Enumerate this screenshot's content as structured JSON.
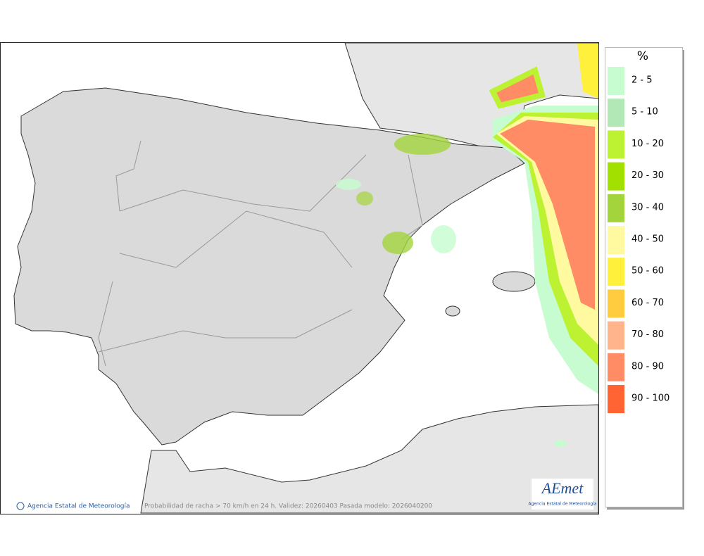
{
  "legend": {
    "title": "%",
    "items": [
      {
        "label": "2 - 5",
        "color": "#c6fcd0"
      },
      {
        "label": "5 - 10",
        "color": "#b2e8b6"
      },
      {
        "label": "10 - 20",
        "color": "#bcf232"
      },
      {
        "label": "20 - 30",
        "color": "#a2e000"
      },
      {
        "label": "30 - 40",
        "color": "#a4d43c"
      },
      {
        "label": "40 - 50",
        "color": "#fffaa0"
      },
      {
        "label": "50 - 60",
        "color": "#fff03c"
      },
      {
        "label": "60 - 70",
        "color": "#ffcc40"
      },
      {
        "label": "70 - 80",
        "color": "#ffb48c"
      },
      {
        "label": "80 - 90",
        "color": "#ff8c64"
      },
      {
        "label": "90 - 100",
        "color": "#ff6432"
      }
    ]
  },
  "footer": {
    "credit": "Agencia Estatal de Meteorología",
    "caption": "Probabilidad de racha > 70 km/h en 24 h. Validez: 20260403 Pasada modelo: 2026040200"
  },
  "logo": {
    "name": "AEmet",
    "subtitle": "Agencia Estatal de Meteorología"
  }
}
